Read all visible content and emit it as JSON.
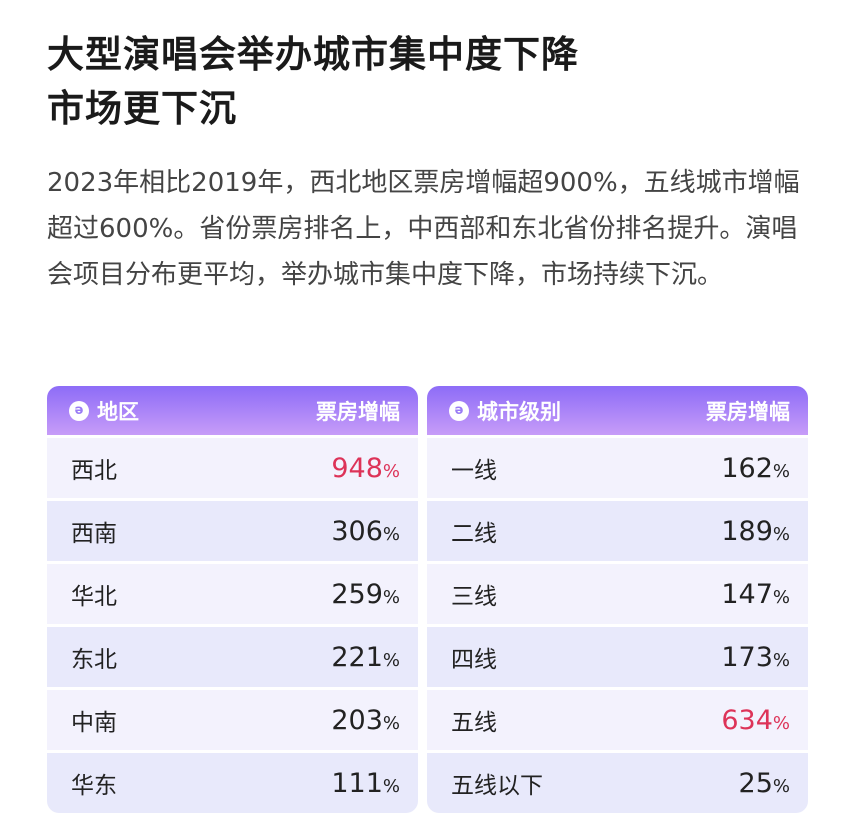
{
  "title_lines": [
    "大型演唱会举办城市集中度下降",
    "市场更下沉"
  ],
  "description": "2023年相比2019年，西北地区票房增幅超900%，五线城市增幅超过600%。省份票房排名上，中西部和东北省份排名提升。演唱会项目分布更平均，举办城市集中度下降，市场持续下沉。",
  "colors": {
    "header_start": "#8d6cf7",
    "header_end": "#c79cf8",
    "highlight": "#dd3358",
    "row_odd": "#f3f2fd",
    "row_even": "#e8e9fb"
  },
  "region_table": {
    "icon": "brand-logo-icon",
    "col1": "地区",
    "col2": "票房增幅",
    "rows": [
      {
        "name": "西北",
        "value": "948",
        "unit": "%",
        "highlight": true
      },
      {
        "name": "西南",
        "value": "306",
        "unit": "%"
      },
      {
        "name": "华北",
        "value": "259",
        "unit": "%"
      },
      {
        "name": "东北",
        "value": "221",
        "unit": "%"
      },
      {
        "name": "中南",
        "value": "203",
        "unit": "%"
      },
      {
        "name": "华东",
        "value": "111",
        "unit": "%"
      }
    ]
  },
  "city_table": {
    "icon": "brand-logo-icon",
    "col1": "城市级别",
    "col2": "票房增幅",
    "rows": [
      {
        "name": "一线",
        "value": "162",
        "unit": "%"
      },
      {
        "name": "二线",
        "value": "189",
        "unit": "%"
      },
      {
        "name": "三线",
        "value": "147",
        "unit": "%"
      },
      {
        "name": "四线",
        "value": "173",
        "unit": "%"
      },
      {
        "name": "五线",
        "value": "634",
        "unit": "%",
        "highlight": true
      },
      {
        "name": "五线以下",
        "value": "25",
        "unit": "%"
      }
    ]
  }
}
